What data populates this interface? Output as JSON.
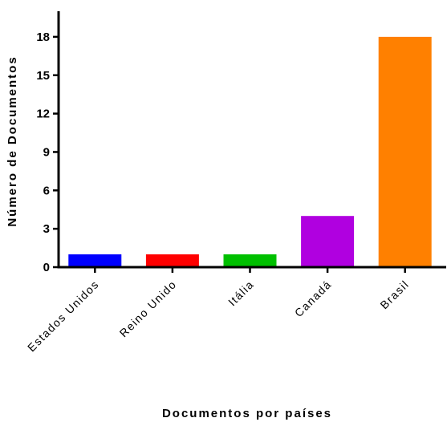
{
  "chart_data": {
    "type": "bar",
    "title": "",
    "xlabel": "Documentos por países",
    "ylabel": "Número de Documentos",
    "categories": [
      "Estados Unidos",
      "Reino Unido",
      "Itália",
      "Canadá",
      "Brasil"
    ],
    "values": [
      1,
      1,
      1,
      4,
      18
    ],
    "colors": [
      "#0000ff",
      "#ff0000",
      "#00c000",
      "#b000e0",
      "#ff8000"
    ],
    "ylim": [
      0,
      20
    ],
    "yticks": [
      0,
      3,
      6,
      9,
      12,
      15,
      18
    ],
    "grid": false,
    "legend": "none"
  }
}
